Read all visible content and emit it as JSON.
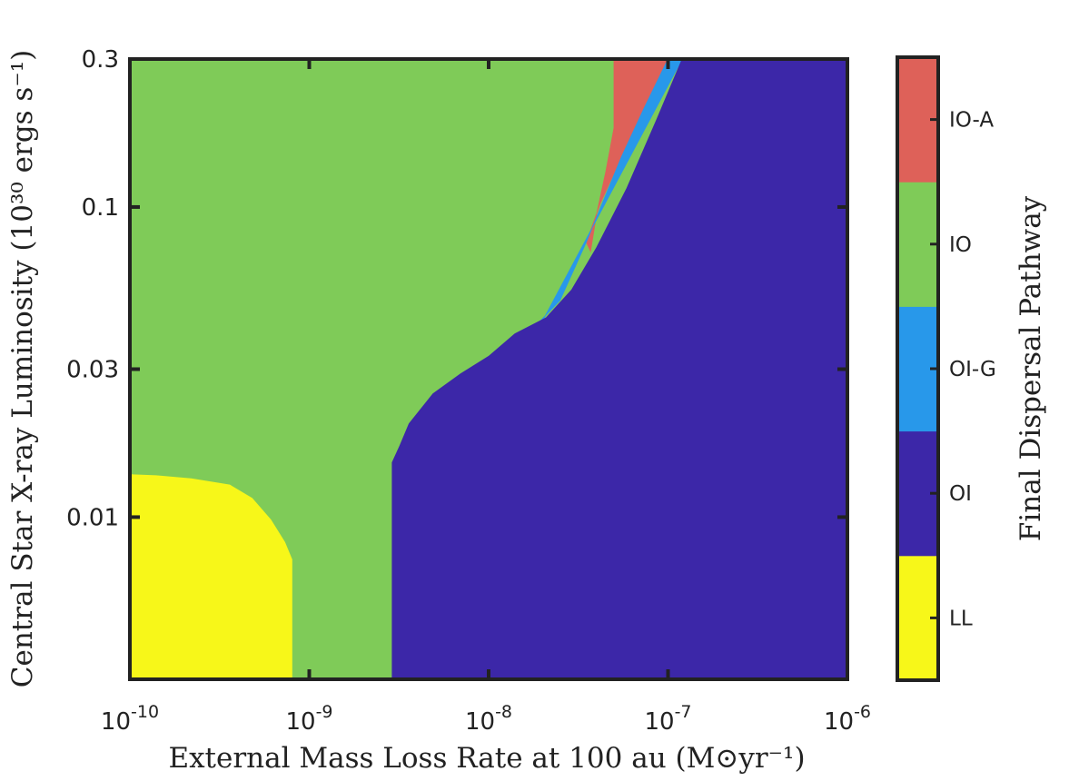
{
  "chart_data": {
    "type": "heatmap",
    "xlabel": "External Mass Loss Rate at 100 au (M⊙yr⁻¹)",
    "ylabel": "Central Star X-ray Luminosity (10³⁰ ergs s⁻¹)",
    "x_scale": "log",
    "y_scale": "log",
    "xlim": [
      1e-10,
      1e-06
    ],
    "ylim": [
      0.003,
      0.3
    ],
    "x_ticks": [
      {
        "value": 1e-10,
        "base": "10",
        "exp": "-10"
      },
      {
        "value": 1e-09,
        "base": "10",
        "exp": "-9"
      },
      {
        "value": 1e-08,
        "base": "10",
        "exp": "-8"
      },
      {
        "value": 1e-07,
        "base": "10",
        "exp": "-7"
      },
      {
        "value": 1e-06,
        "base": "10",
        "exp": "-6"
      }
    ],
    "y_ticks": [
      {
        "value": 0.01,
        "label": "0.01"
      },
      {
        "value": 0.03,
        "label": "0.03"
      },
      {
        "value": 0.1,
        "label": "0.1"
      },
      {
        "value": 0.3,
        "label": "0.3"
      }
    ],
    "colorbar": {
      "label": "Final Dispersal Pathway",
      "categories": [
        {
          "label": "LL",
          "color": "#f7f719"
        },
        {
          "label": "OI",
          "color": "#3c27a8"
        },
        {
          "label": "OI-G",
          "color": "#2898ea"
        },
        {
          "label": "IO",
          "color": "#7fcb58"
        },
        {
          "label": "IO-A",
          "color": "#de6159"
        }
      ]
    },
    "regions": [
      {
        "category": "IO",
        "polygon": [
          [
            1e-10,
            0.003
          ],
          [
            1e-06,
            0.003
          ],
          [
            1e-06,
            0.3
          ],
          [
            1e-10,
            0.3
          ]
        ]
      },
      {
        "category": "IO-A",
        "polygon": [
          [
            5e-08,
            0.3
          ],
          [
            1e-07,
            0.3
          ],
          [
            7.4e-08,
            0.21
          ],
          [
            5.5e-08,
            0.145
          ],
          [
            4.2e-08,
            0.103
          ],
          [
            3.5e-08,
            0.077
          ],
          [
            3.7e-08,
            0.072
          ],
          [
            4e-08,
            0.095
          ],
          [
            4.5e-08,
            0.13
          ],
          [
            5e-08,
            0.18
          ]
        ]
      },
      {
        "category": "OI-G",
        "polygon": [
          [
            1e-07,
            0.3
          ],
          [
            1.2e-07,
            0.3
          ],
          [
            2e-08,
            0.043
          ],
          [
            1.8e-08,
            0.041
          ],
          [
            2.5e-08,
            0.05
          ],
          [
            3.5e-08,
            0.077
          ],
          [
            5.5e-08,
            0.145
          ],
          [
            7.4e-08,
            0.21
          ]
        ]
      },
      {
        "category": "OI",
        "polygon": [
          [
            2.9e-09,
            0.003
          ],
          [
            1e-06,
            0.003
          ],
          [
            1e-06,
            0.3
          ],
          [
            1.2e-07,
            0.3
          ],
          [
            8.6e-08,
            0.19
          ],
          [
            5.9e-08,
            0.115
          ],
          [
            4e-08,
            0.074
          ],
          [
            2.9e-08,
            0.054
          ],
          [
            2.1e-08,
            0.044
          ],
          [
            1.4e-08,
            0.039
          ],
          [
            1e-08,
            0.033
          ],
          [
            7e-09,
            0.029
          ],
          [
            4.9e-09,
            0.025
          ],
          [
            3.6e-09,
            0.02
          ],
          [
            3.2e-09,
            0.017
          ],
          [
            2.9e-09,
            0.015
          ]
        ]
      },
      {
        "category": "LL",
        "polygon": [
          [
            1e-10,
            0.003
          ],
          [
            8e-10,
            0.003
          ],
          [
            8e-10,
            0.0073
          ],
          [
            7.3e-10,
            0.0083
          ],
          [
            6.1e-10,
            0.0098
          ],
          [
            4.8e-10,
            0.0115
          ],
          [
            3.6e-10,
            0.0127
          ],
          [
            2.2e-10,
            0.0133
          ],
          [
            1.4e-10,
            0.0136
          ],
          [
            1e-10,
            0.0137
          ]
        ]
      }
    ]
  }
}
